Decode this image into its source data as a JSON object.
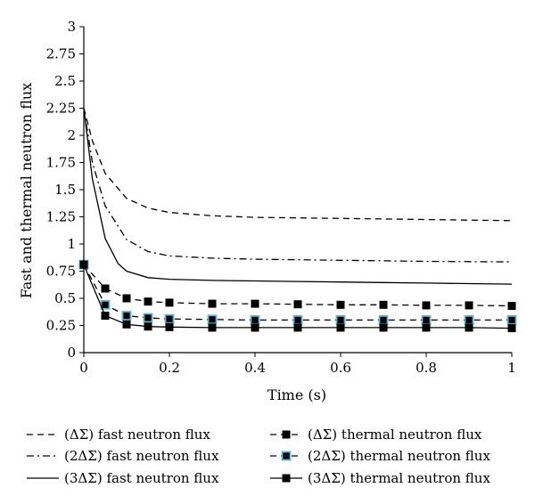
{
  "chart_data": {
    "type": "line",
    "title": "",
    "xlabel": "Time (s)",
    "ylabel": "Fast and thermal neutron flux",
    "xlim": [
      0,
      1
    ],
    "ylim": [
      0,
      3
    ],
    "x_ticks": [
      "0",
      "0.2",
      "0.4",
      "0.6",
      "0.8",
      "1"
    ],
    "y_ticks": [
      "0",
      "0.25",
      "0.5",
      "0.75",
      "1",
      "1.25",
      "1.5",
      "1.75",
      "2",
      "2.25",
      "2.5",
      "2.75",
      "3"
    ],
    "grid": false,
    "legend_position": "bottom",
    "series": [
      {
        "name": "(ΔΣ) fast neutron flux",
        "style": "dashed",
        "marker": "none",
        "color": "#000000",
        "x": [
          0,
          0.02,
          0.05,
          0.1,
          0.15,
          0.2,
          0.3,
          0.4,
          0.5,
          0.6,
          0.7,
          0.8,
          0.9,
          1.0
        ],
        "y": [
          2.25,
          1.95,
          1.65,
          1.42,
          1.33,
          1.29,
          1.26,
          1.245,
          1.24,
          1.235,
          1.23,
          1.225,
          1.22,
          1.215
        ]
      },
      {
        "name": "(2ΔΣ) fast neutron flux",
        "style": "dashdot",
        "marker": "none",
        "color": "#000000",
        "x": [
          0,
          0.02,
          0.05,
          0.1,
          0.15,
          0.2,
          0.3,
          0.4,
          0.5,
          0.6,
          0.7,
          0.8,
          0.9,
          1.0
        ],
        "y": [
          2.25,
          1.75,
          1.35,
          1.04,
          0.93,
          0.89,
          0.87,
          0.86,
          0.855,
          0.85,
          0.845,
          0.84,
          0.838,
          0.835
        ]
      },
      {
        "name": "(3ΔΣ) fast neutron flux",
        "style": "solid",
        "marker": "none",
        "color": "#000000",
        "x": [
          0,
          0.02,
          0.05,
          0.08,
          0.1,
          0.15,
          0.2,
          0.3,
          0.4,
          0.5,
          0.6,
          0.7,
          0.8,
          0.9,
          1.0
        ],
        "y": [
          2.25,
          1.6,
          1.05,
          0.82,
          0.75,
          0.69,
          0.675,
          0.665,
          0.66,
          0.655,
          0.65,
          0.645,
          0.64,
          0.635,
          0.63
        ]
      },
      {
        "name": "(ΔΣ) thermal neutron flux",
        "style": "dashed",
        "marker": "square-black",
        "color": "#000000",
        "x": [
          0,
          0.05,
          0.1,
          0.15,
          0.2,
          0.3,
          0.4,
          0.5,
          0.6,
          0.7,
          0.8,
          0.9,
          1.0
        ],
        "y": [
          0.81,
          0.59,
          0.5,
          0.47,
          0.46,
          0.45,
          0.45,
          0.445,
          0.44,
          0.44,
          0.435,
          0.435,
          0.43
        ]
      },
      {
        "name": "(2ΔΣ) thermal neutron flux",
        "style": "dashed",
        "marker": "square-outlined",
        "color": "#000000",
        "marker_fill": "#000000",
        "marker_edge": "#5bb8d6",
        "x": [
          0,
          0.05,
          0.1,
          0.15,
          0.2,
          0.3,
          0.4,
          0.5,
          0.6,
          0.7,
          0.8,
          0.9,
          1.0
        ],
        "y": [
          0.81,
          0.44,
          0.34,
          0.32,
          0.31,
          0.305,
          0.3,
          0.3,
          0.3,
          0.3,
          0.3,
          0.3,
          0.3
        ]
      },
      {
        "name": "(3ΔΣ) thermal neutron flux",
        "style": "solid",
        "marker": "square-black",
        "color": "#000000",
        "x": [
          0,
          0.05,
          0.1,
          0.15,
          0.2,
          0.3,
          0.4,
          0.5,
          0.6,
          0.7,
          0.8,
          0.9,
          1.0
        ],
        "y": [
          0.81,
          0.34,
          0.26,
          0.24,
          0.235,
          0.23,
          0.23,
          0.23,
          0.23,
          0.23,
          0.23,
          0.23,
          0.225
        ]
      }
    ]
  }
}
